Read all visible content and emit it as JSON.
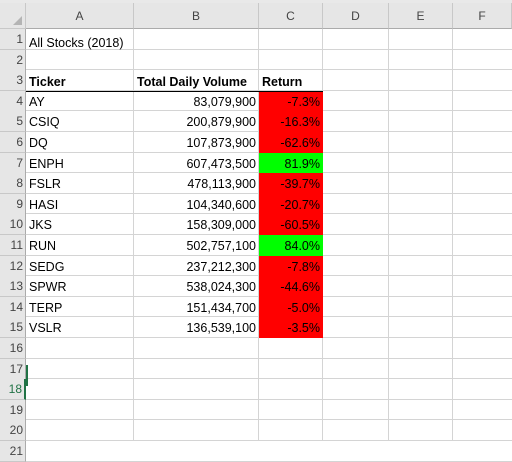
{
  "columns": [
    "A",
    "B",
    "C",
    "D",
    "E",
    "F"
  ],
  "rows": [
    "1",
    "2",
    "3",
    "4",
    "5",
    "6",
    "7",
    "8",
    "9",
    "10",
    "11",
    "12",
    "13",
    "14",
    "15",
    "16",
    "17",
    "18",
    "19",
    "20",
    "21"
  ],
  "active_row": "18",
  "title": "All Stocks (2018)",
  "headers": {
    "ticker": "Ticker",
    "volume": "Total Daily Volume",
    "return": "Return"
  },
  "stocks": [
    {
      "ticker": "AY",
      "volume": "83,079,900",
      "return": "-7.3%",
      "color": "#ff0000"
    },
    {
      "ticker": "CSIQ",
      "volume": "200,879,900",
      "return": "-16.3%",
      "color": "#ff0000"
    },
    {
      "ticker": "DQ",
      "volume": "107,873,900",
      "return": "-62.6%",
      "color": "#ff0000"
    },
    {
      "ticker": "ENPH",
      "volume": "607,473,500",
      "return": "81.9%",
      "color": "#00ff00"
    },
    {
      "ticker": "FSLR",
      "volume": "478,113,900",
      "return": "-39.7%",
      "color": "#ff0000"
    },
    {
      "ticker": "HASI",
      "volume": "104,340,600",
      "return": "-20.7%",
      "color": "#ff0000"
    },
    {
      "ticker": "JKS",
      "volume": "158,309,000",
      "return": "-60.5%",
      "color": "#ff0000"
    },
    {
      "ticker": "RUN",
      "volume": "502,757,100",
      "return": "84.0%",
      "color": "#00ff00"
    },
    {
      "ticker": "SEDG",
      "volume": "237,212,300",
      "return": "-7.8%",
      "color": "#ff0000"
    },
    {
      "ticker": "SPWR",
      "volume": "538,024,300",
      "return": "-44.6%",
      "color": "#ff0000"
    },
    {
      "ticker": "TERP",
      "volume": "151,434,700",
      "return": "-5.0%",
      "color": "#ff0000"
    },
    {
      "ticker": "VSLR",
      "volume": "136,539,100",
      "return": "-3.5%",
      "color": "#ff0000"
    }
  ]
}
